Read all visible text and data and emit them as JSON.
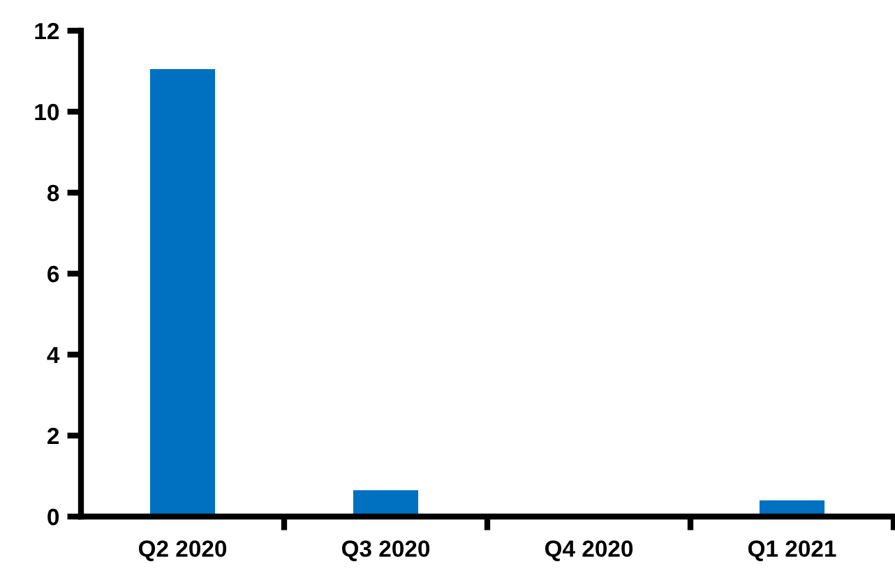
{
  "chart_data": {
    "type": "bar",
    "categories": [
      "Q2 2020",
      "Q3 2020",
      "Q4 2020",
      "Q1 2021"
    ],
    "values": [
      11.05,
      0.65,
      0,
      0.4
    ],
    "color": "#0070c0",
    "ylim": [
      0,
      12
    ],
    "yticks": [
      0,
      2,
      4,
      6,
      8,
      10,
      12
    ],
    "grid": false,
    "legend": false
  }
}
